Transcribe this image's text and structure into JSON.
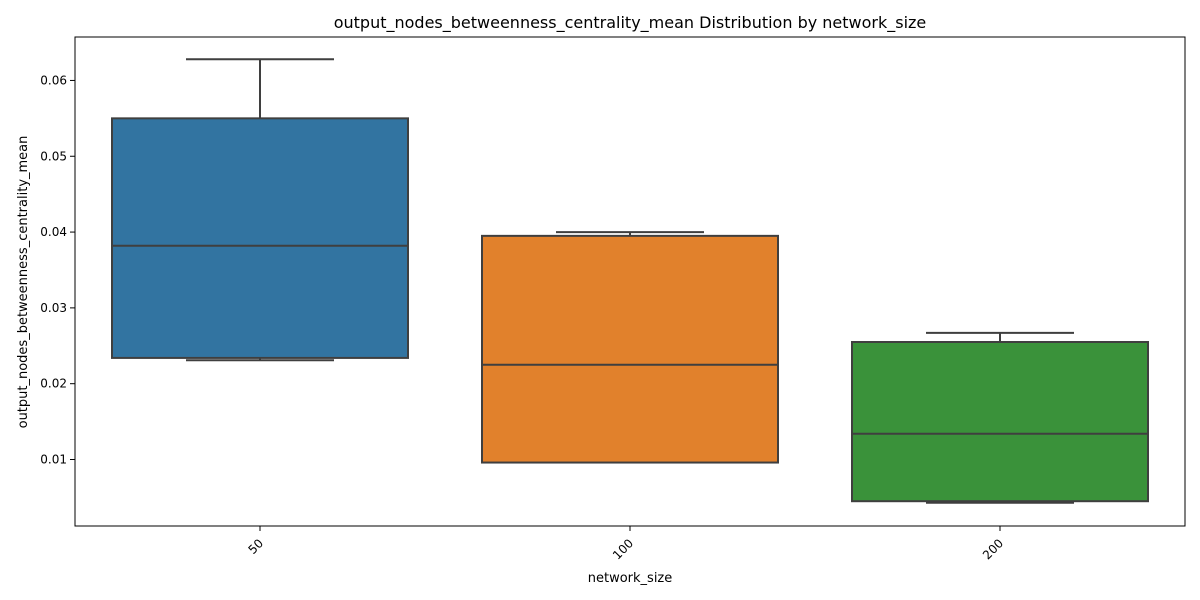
{
  "chart_data": {
    "type": "box",
    "title": "output_nodes_betweenness_centrality_mean Distribution by network_size",
    "xlabel": "network_size",
    "ylabel": "output_nodes_betweenness_centrality_mean",
    "categories": [
      "50",
      "100",
      "200"
    ],
    "boxes": [
      {
        "category": "50",
        "whisker_low": 0.0231,
        "q1": 0.0234,
        "median": 0.0382,
        "q3": 0.055,
        "whisker_high": 0.0628,
        "color": "#3274a1"
      },
      {
        "category": "100",
        "whisker_low": 0.0096,
        "q1": 0.0096,
        "median": 0.0225,
        "q3": 0.0395,
        "whisker_high": 0.04,
        "color": "#e1812c"
      },
      {
        "category": "200",
        "whisker_low": 0.0043,
        "q1": 0.0045,
        "median": 0.0134,
        "q3": 0.0255,
        "whisker_high": 0.0267,
        "color": "#3a923a"
      }
    ],
    "yticks": [
      0.01,
      0.02,
      0.03,
      0.04,
      0.05,
      0.06
    ],
    "ytick_labels": [
      "0.01",
      "0.02",
      "0.03",
      "0.04",
      "0.05",
      "0.06"
    ],
    "ylim": [
      0.00123,
      0.06573
    ],
    "x_tick_rotation_deg": 45,
    "grid": false,
    "line_color": "#3f3f3f"
  }
}
